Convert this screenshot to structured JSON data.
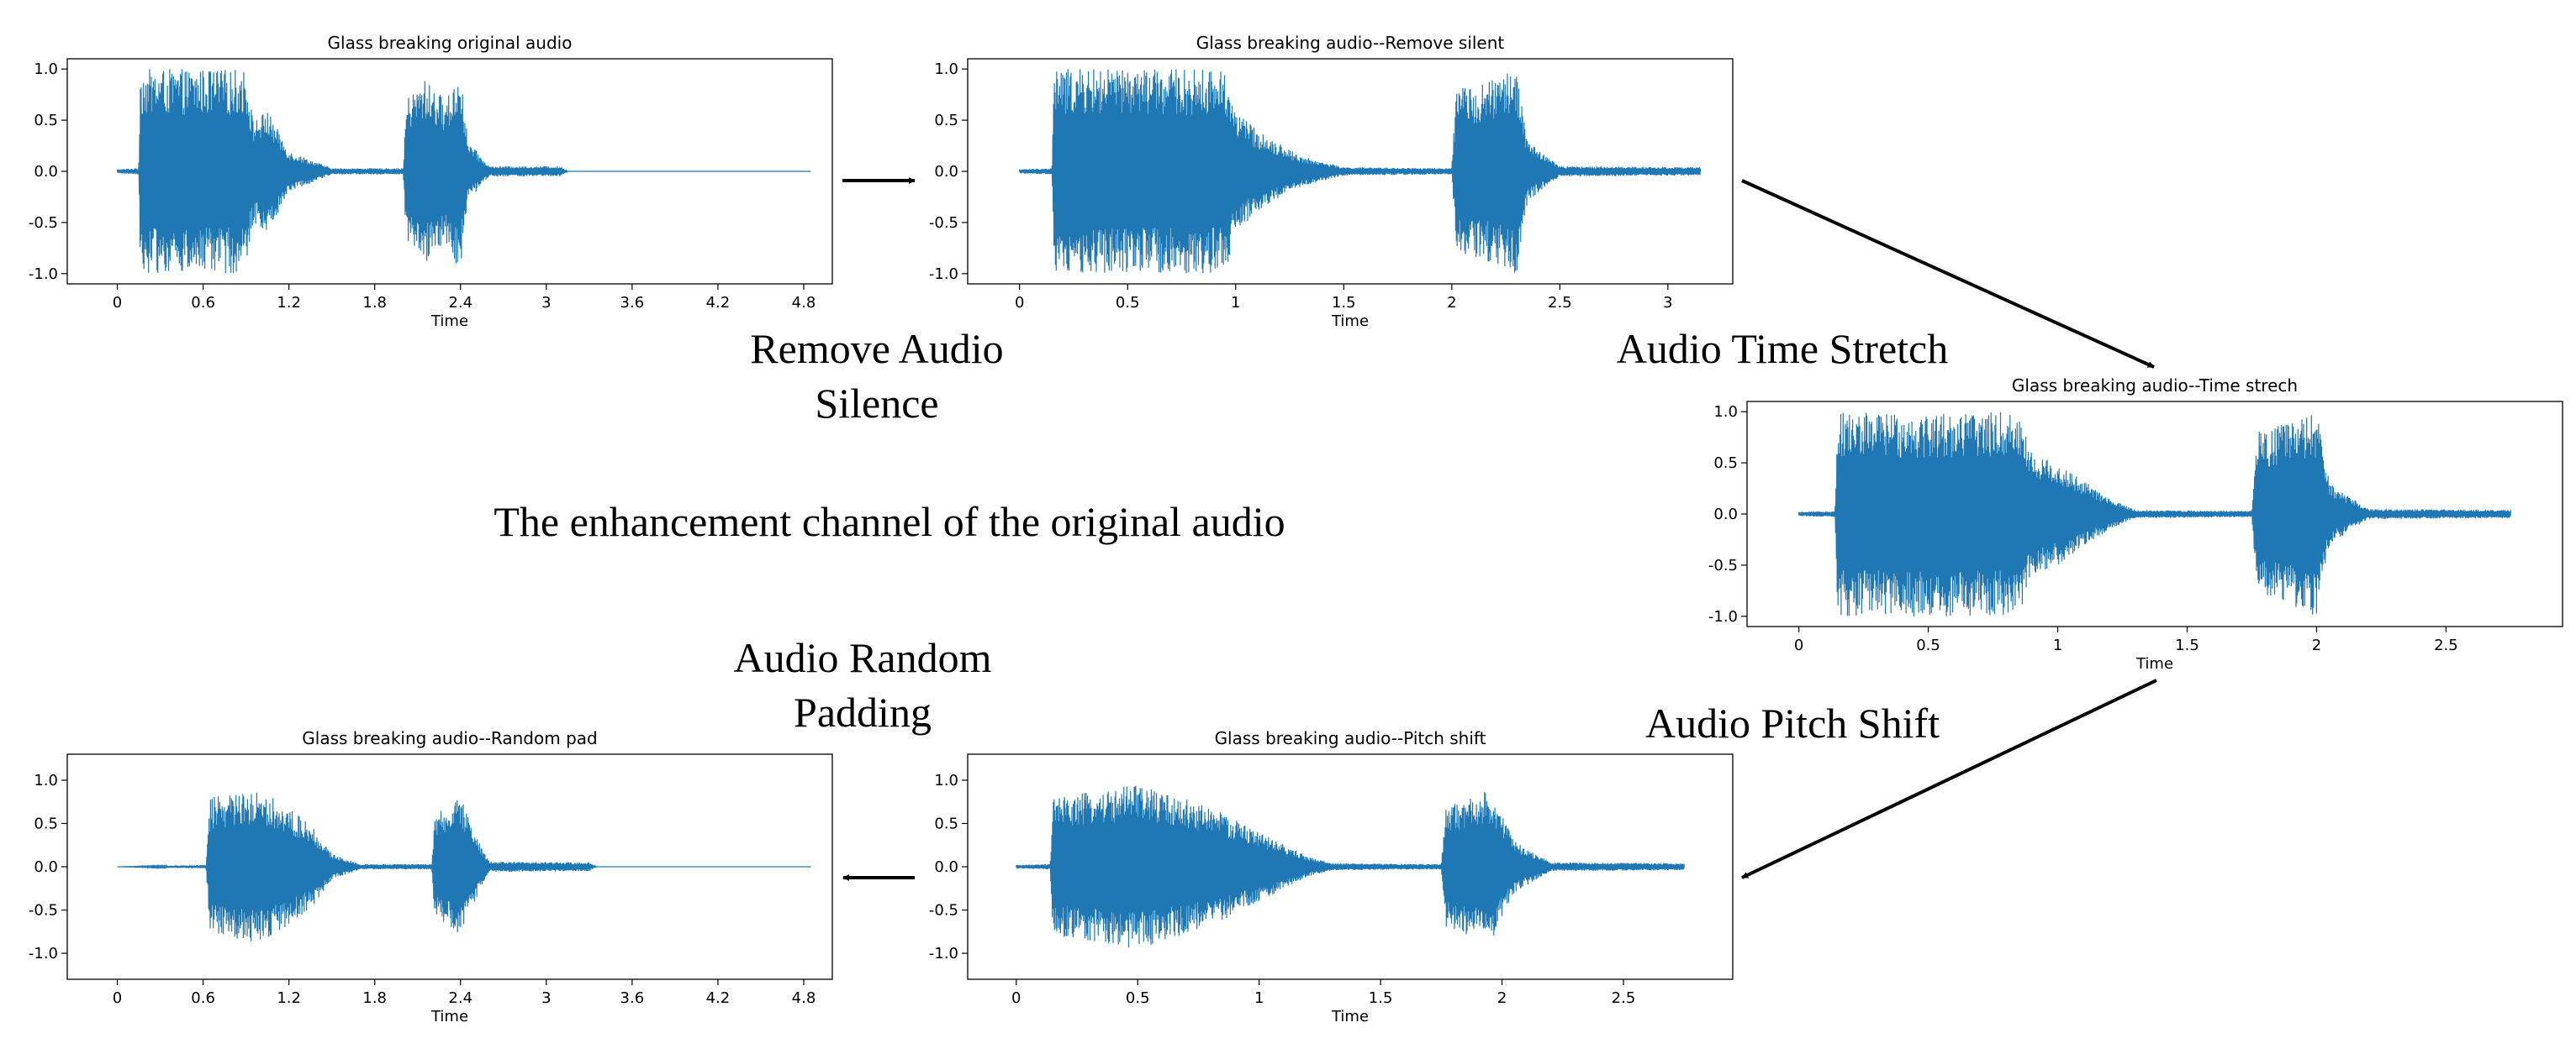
{
  "diagram": {
    "center_caption": "The enhancement channel of the original audio",
    "steps": [
      {
        "label_lines": [
          "Remove Audio",
          "Silence"
        ]
      },
      {
        "label_lines": [
          "Audio Time Stretch"
        ]
      },
      {
        "label_lines": [
          "Audio Pitch Shift"
        ]
      },
      {
        "label_lines": [
          "Audio Random",
          "Padding"
        ]
      }
    ]
  },
  "colors": {
    "waveform": "#1f77b4",
    "axes": "#000000",
    "arrow": "#000000"
  },
  "chart_data": [
    {
      "type": "line",
      "title": "Glass breaking original audio",
      "xlabel": "Time",
      "xlim": [
        -0.35,
        5.0
      ],
      "ylim": [
        -1.1,
        1.1
      ],
      "xticks": [
        "0",
        "0.6",
        "1.2",
        "1.8",
        "2.4",
        "3",
        "3.6",
        "4.2",
        "4.8"
      ],
      "xtick_values": [
        0,
        0.6,
        1.2,
        1.8,
        2.4,
        3.0,
        3.6,
        4.2,
        4.8
      ],
      "yticks": [
        "1.0",
        "0.5",
        "0.0",
        "-0.5",
        "-1.0"
      ],
      "ytick_values": [
        1.0,
        0.5,
        0.0,
        -0.5,
        -1.0
      ],
      "duration": 4.85,
      "envelope": [
        [
          0,
          0.02
        ],
        [
          0.15,
          0.03
        ],
        [
          0.16,
          1.0
        ],
        [
          0.9,
          1.0
        ],
        [
          0.95,
          0.5
        ],
        [
          1.05,
          0.6
        ],
        [
          1.2,
          0.2
        ],
        [
          1.5,
          0.03
        ],
        [
          2.0,
          0.03
        ],
        [
          2.02,
          0.7
        ],
        [
          2.15,
          0.9
        ],
        [
          2.3,
          0.7
        ],
        [
          2.4,
          1.0
        ],
        [
          2.45,
          0.3
        ],
        [
          2.6,
          0.05
        ],
        [
          3.1,
          0.05
        ],
        [
          3.15,
          0.0
        ],
        [
          4.85,
          0.0
        ]
      ]
    },
    {
      "type": "line",
      "title": "Glass breaking audio--Remove silent",
      "xlabel": "Time",
      "xlim": [
        -0.24,
        3.3
      ],
      "ylim": [
        -1.1,
        1.1
      ],
      "xticks": [
        "0",
        "0.5",
        "1",
        "1.5",
        "2",
        "2.5",
        "3"
      ],
      "xtick_values": [
        0,
        0.5,
        1.0,
        1.5,
        2.0,
        2.5,
        3.0
      ],
      "yticks": [
        "1.0",
        "0.5",
        "0.0",
        "-0.5",
        "-1.0"
      ],
      "ytick_values": [
        1.0,
        0.5,
        0.0,
        -0.5,
        -1.0
      ],
      "duration": 3.15,
      "envelope": [
        [
          0,
          0.02
        ],
        [
          0.15,
          0.03
        ],
        [
          0.16,
          1.0
        ],
        [
          0.95,
          1.0
        ],
        [
          1.0,
          0.6
        ],
        [
          1.1,
          0.4
        ],
        [
          1.3,
          0.15
        ],
        [
          1.5,
          0.04
        ],
        [
          2.0,
          0.03
        ],
        [
          2.02,
          0.8
        ],
        [
          2.2,
          0.9
        ],
        [
          2.3,
          1.0
        ],
        [
          2.35,
          0.3
        ],
        [
          2.5,
          0.05
        ],
        [
          3.15,
          0.04
        ]
      ]
    },
    {
      "type": "line",
      "title": "Glass breaking audio--Time strech",
      "xlabel": "Time",
      "xlim": [
        -0.2,
        2.95
      ],
      "ylim": [
        -1.1,
        1.1
      ],
      "xticks": [
        "0",
        "0.5",
        "1",
        "1.5",
        "2",
        "2.5"
      ],
      "xtick_values": [
        0,
        0.5,
        1.0,
        1.5,
        2.0,
        2.5
      ],
      "yticks": [
        "1.0",
        "0.5",
        "0.0",
        "-0.5",
        "-1.0"
      ],
      "ytick_values": [
        1.0,
        0.5,
        0.0,
        -0.5,
        -1.0
      ],
      "duration": 2.75,
      "envelope": [
        [
          0,
          0.02
        ],
        [
          0.14,
          0.03
        ],
        [
          0.15,
          1.0
        ],
        [
          0.85,
          1.0
        ],
        [
          0.9,
          0.6
        ],
        [
          1.0,
          0.5
        ],
        [
          1.2,
          0.15
        ],
        [
          1.3,
          0.04
        ],
        [
          1.75,
          0.03
        ],
        [
          1.77,
          0.8
        ],
        [
          1.9,
          0.9
        ],
        [
          2.0,
          1.0
        ],
        [
          2.05,
          0.3
        ],
        [
          2.2,
          0.05
        ],
        [
          2.75,
          0.04
        ]
      ]
    },
    {
      "type": "line",
      "title": "Glass breaking audio--Pitch shift",
      "xlabel": "Time",
      "xlim": [
        -0.2,
        2.95
      ],
      "ylim": [
        -1.3,
        1.3
      ],
      "xticks": [
        "0",
        "0.5",
        "1",
        "1.5",
        "2",
        "2.5"
      ],
      "xtick_values": [
        0,
        0.5,
        1.0,
        1.5,
        2.0,
        2.5
      ],
      "yticks": [
        "1.0",
        "0.5",
        "0.0",
        "-0.5",
        "-1.0"
      ],
      "ytick_values": [
        1.0,
        0.5,
        0.0,
        -0.5,
        -1.0
      ],
      "duration": 2.75,
      "envelope": [
        [
          0,
          0.02
        ],
        [
          0.14,
          0.03
        ],
        [
          0.15,
          0.8
        ],
        [
          0.5,
          0.95
        ],
        [
          0.8,
          0.7
        ],
        [
          0.9,
          0.55
        ],
        [
          1.0,
          0.4
        ],
        [
          1.2,
          0.12
        ],
        [
          1.3,
          0.04
        ],
        [
          1.75,
          0.03
        ],
        [
          1.77,
          0.7
        ],
        [
          1.95,
          0.9
        ],
        [
          2.05,
          0.3
        ],
        [
          2.2,
          0.05
        ],
        [
          2.75,
          0.04
        ]
      ]
    },
    {
      "type": "line",
      "title": "Glass breaking audio--Random pad",
      "xlabel": "Time",
      "xlim": [
        -0.35,
        5.0
      ],
      "ylim": [
        -1.3,
        1.3
      ],
      "xticks": [
        "0",
        "0.6",
        "1.2",
        "1.8",
        "2.4",
        "3",
        "3.6",
        "4.2",
        "4.8"
      ],
      "xtick_values": [
        0,
        0.6,
        1.2,
        1.8,
        2.4,
        3.0,
        3.6,
        4.2,
        4.8
      ],
      "yticks": [
        "1.0",
        "0.5",
        "0.0",
        "-0.5",
        "-1.0"
      ],
      "ytick_values": [
        1.0,
        0.5,
        0.0,
        -0.5,
        -1.0
      ],
      "duration": 4.85,
      "envelope": [
        [
          0,
          0.0
        ],
        [
          0.62,
          0.02
        ],
        [
          0.65,
          0.8
        ],
        [
          1.0,
          0.9
        ],
        [
          1.35,
          0.5
        ],
        [
          1.5,
          0.15
        ],
        [
          1.7,
          0.03
        ],
        [
          2.2,
          0.03
        ],
        [
          2.22,
          0.6
        ],
        [
          2.4,
          0.8
        ],
        [
          2.5,
          0.4
        ],
        [
          2.6,
          0.06
        ],
        [
          3.3,
          0.05
        ],
        [
          3.35,
          0.0
        ],
        [
          4.85,
          0.0
        ]
      ]
    }
  ]
}
